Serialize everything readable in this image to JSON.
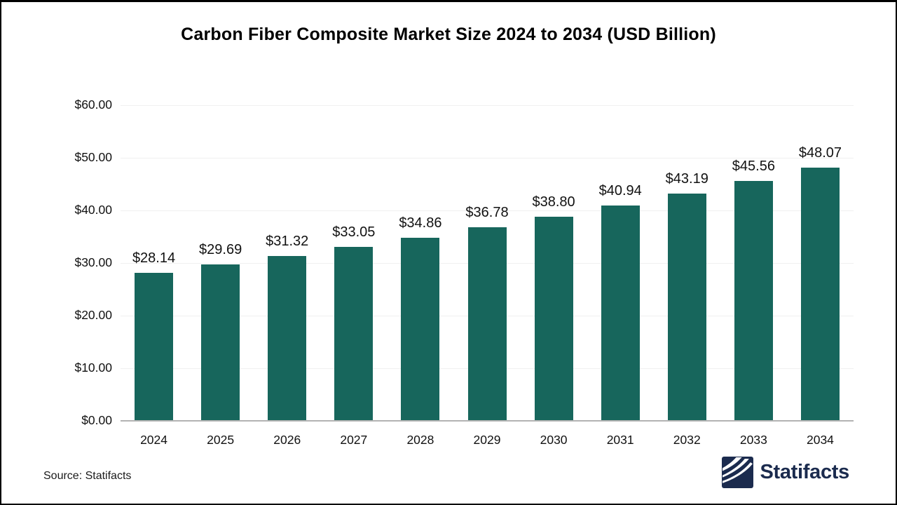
{
  "page": {
    "title": "Carbon Fiber Composite Market Size 2024 to 2034 (USD Billion)",
    "source_label": "Source: Statifacts",
    "brand_name": "Statifacts"
  },
  "colors": {
    "bar": "#17665C",
    "gridline": "#F0F0F0",
    "baseline": "#B3B3B3",
    "text": "#111111",
    "brand_navy": "#1B2B4E"
  },
  "icons": {
    "brand_logo": "statifacts-waves-icon"
  },
  "chart_data": {
    "type": "bar",
    "title": "Carbon Fiber Composite Market Size 2024 to 2034 (USD Billion)",
    "categories": [
      "2024",
      "2025",
      "2026",
      "2027",
      "2028",
      "2029",
      "2030",
      "2031",
      "2032",
      "2033",
      "2034"
    ],
    "values": [
      28.14,
      29.69,
      31.32,
      33.05,
      34.86,
      36.78,
      38.8,
      40.94,
      43.19,
      45.56,
      48.07
    ],
    "value_labels": [
      "$28.14",
      "$29.69",
      "$31.32",
      "$33.05",
      "$34.86",
      "$36.78",
      "$38.80",
      "$40.94",
      "$43.19",
      "$45.56",
      "$48.07"
    ],
    "xlabel": "",
    "ylabel": "",
    "ylim": [
      0,
      60
    ],
    "ytick_step": 10,
    "ytick_labels": [
      "$0.00",
      "$10.00",
      "$20.00",
      "$30.00",
      "$40.00",
      "$50.00",
      "$60.00"
    ],
    "grid": "horizontal",
    "legend": "none",
    "bar_color": "#17665C"
  }
}
